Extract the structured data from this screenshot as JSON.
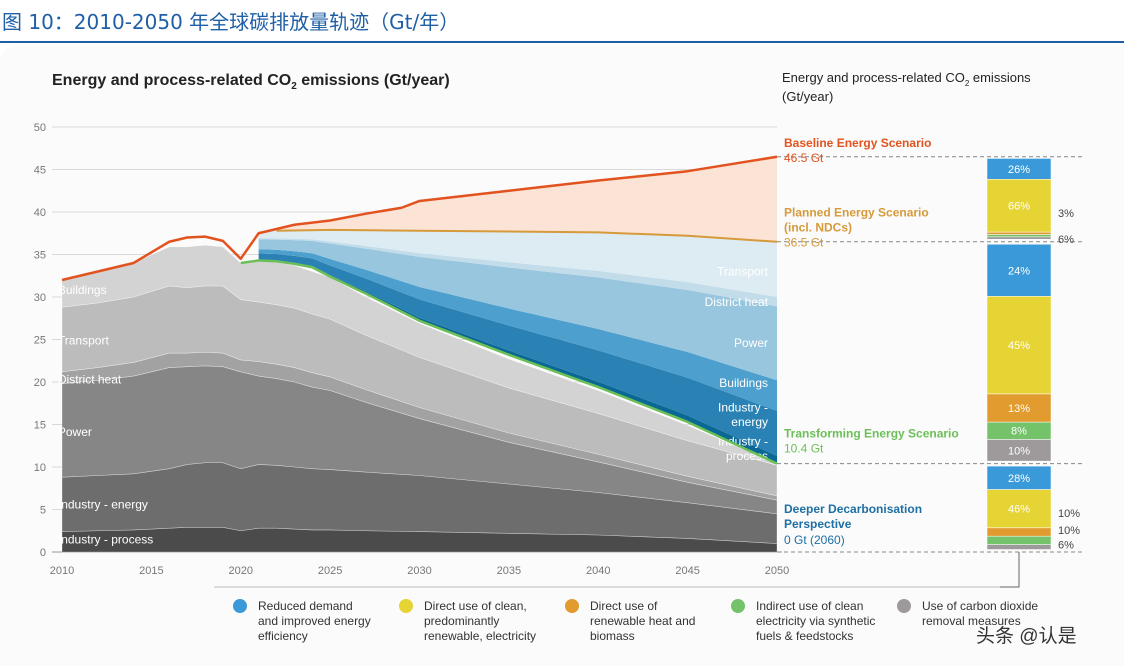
{
  "figure_title": "图 10：2010-2050 年全球碳排放量轨迹（Gt/年）",
  "watermark": "头条 @认是",
  "chart_data": {
    "type": "area",
    "title_main": "Energy and process-related CO",
    "title_sub": "2",
    "title_tail": " emissions (Gt/year)",
    "right_title_line1_main": "Energy and process-related CO",
    "right_title_line1_sub": "2",
    "right_title_line1_tail": " emissions",
    "right_title_line2": "(Gt/year)",
    "xlim": [
      2010,
      2050
    ],
    "ylim": [
      0,
      50
    ],
    "xticks": [
      2010,
      2015,
      2020,
      2025,
      2030,
      2035,
      2040,
      2045,
      2050
    ],
    "yticks": [
      0,
      5,
      10,
      15,
      20,
      25,
      30,
      35,
      40,
      45,
      50
    ],
    "grid": true,
    "x": [
      2010,
      2012,
      2014,
      2016,
      2017,
      2018,
      2019,
      2020,
      2021,
      2022,
      2023,
      2024,
      2025,
      2027,
      2030,
      2035,
      2040,
      2045,
      2050
    ],
    "sectors": [
      {
        "name": "Industry - process",
        "color": "#4b4b4b",
        "values": [
          2.4,
          2.5,
          2.6,
          2.8,
          2.9,
          2.9,
          2.9,
          2.5,
          2.8,
          2.8,
          2.7,
          2.6,
          2.6,
          2.5,
          2.4,
          2.2,
          2.0,
          1.6,
          1.0
        ]
      },
      {
        "name": "Industry - energy",
        "color": "#6d6d6d",
        "values": [
          6.4,
          6.5,
          6.6,
          7.0,
          7.4,
          7.6,
          7.6,
          7.3,
          7.5,
          7.4,
          7.3,
          7.2,
          7.1,
          6.9,
          6.6,
          5.8,
          5.0,
          4.2,
          3.5
        ]
      },
      {
        "name": "Power",
        "color": "#868686",
        "values": [
          11.0,
          11.2,
          11.5,
          11.9,
          11.5,
          11.4,
          11.3,
          11.4,
          10.4,
          10.2,
          10.0,
          9.6,
          9.3,
          8.2,
          6.7,
          4.9,
          3.6,
          2.4,
          1.6
        ]
      },
      {
        "name": "District heat",
        "color": "#a2a2a2",
        "values": [
          1.4,
          1.5,
          1.6,
          1.7,
          1.6,
          1.6,
          1.6,
          1.4,
          1.7,
          1.7,
          1.7,
          1.7,
          1.6,
          1.5,
          1.3,
          1.1,
          0.9,
          0.7,
          0.5
        ]
      },
      {
        "name": "Transport",
        "color": "#bcbcbc",
        "values": [
          7.6,
          7.6,
          7.7,
          7.9,
          7.7,
          7.8,
          7.9,
          7.1,
          7.0,
          7.0,
          7.0,
          6.9,
          6.8,
          6.4,
          5.9,
          5.3,
          4.8,
          4.2,
          3.6
        ]
      },
      {
        "name": "Buildings",
        "color": "#d3d3d3",
        "values": [
          3.2,
          3.7,
          4.0,
          4.6,
          4.8,
          4.8,
          4.6,
          4.3,
          4.9,
          5.0,
          5.0,
          5.0,
          4.9,
          4.5,
          4.0,
          3.4,
          2.7,
          1.8,
          0.2
        ]
      }
    ],
    "sector_labels": [
      {
        "text": "Industry - process",
        "x": 2011,
        "y": 1.5
      },
      {
        "text": "Industry - energy",
        "x": 2011,
        "y": 5.6
      },
      {
        "text": "Power",
        "x": 2011,
        "y": 14.1
      },
      {
        "text": "District heat",
        "x": 2011,
        "y": 20.3
      },
      {
        "text": "Transport",
        "x": 2011,
        "y": 24.9
      },
      {
        "text": "Buildings",
        "x": 2011,
        "y": 30.8
      }
    ],
    "reduction_bands": [
      {
        "name": "Industry - process",
        "color": "#0a6894",
        "values2050": [
          10.4,
          11.3
        ]
      },
      {
        "name": "Industry - energy",
        "color": "#2a82b4",
        "values2050": [
          11.3,
          16.6
        ]
      },
      {
        "name": "Buildings",
        "color": "#4d9fcd",
        "values2050": [
          16.6,
          20.2
        ]
      },
      {
        "name": "Power",
        "color": "#98c6de",
        "values2050": [
          20.2,
          28.9
        ]
      },
      {
        "name": "District heat",
        "color": "#c2dcea",
        "values2050": [
          28.9,
          30.0
        ]
      },
      {
        "name": "Transport",
        "color": "#ddebf3",
        "values2050": [
          30.0,
          36.5
        ]
      }
    ],
    "band_labels": [
      {
        "text": "Transport",
        "y": 33.0
      },
      {
        "text": "District heat",
        "y": 29.4
      },
      {
        "text": "Power",
        "y": 24.6
      },
      {
        "text": "Buildings",
        "y": 19.9
      },
      {
        "text": "Industry -",
        "y": 17.0
      },
      {
        "text": "energy",
        "y": 15.3
      },
      {
        "text": "Industry -",
        "y": 13.0
      },
      {
        "text": "process",
        "y": 11.3
      }
    ],
    "scenarios": [
      {
        "name": "Baseline Energy Scenario",
        "value_label": "46.5 Gt",
        "color": "#e2531f",
        "x": [
          2010,
          2012,
          2014,
          2016,
          2017,
          2018,
          2019,
          2020,
          2021,
          2022,
          2023,
          2025,
          2027,
          2029,
          2030,
          2035,
          2040,
          2045,
          2050
        ],
        "y": [
          32.0,
          33.0,
          34.0,
          36.5,
          37.0,
          37.1,
          36.6,
          34.5,
          37.5,
          38.0,
          38.5,
          39.0,
          39.8,
          40.5,
          41.3,
          42.5,
          43.7,
          44.8,
          46.5
        ]
      },
      {
        "name": "Planned Energy Scenario",
        "name_line2": "(incl. NDCs)",
        "value_label": "36.5 Gt",
        "color": "#d69a3a",
        "x": [
          2022,
          2025,
          2030,
          2035,
          2040,
          2045,
          2050
        ],
        "y": [
          37.8,
          37.9,
          37.8,
          37.7,
          37.6,
          37.2,
          36.5
        ]
      },
      {
        "name": "Transforming Energy Scenario",
        "value_label": "10.4 Gt",
        "color": "#6cbf58",
        "x": [
          2020,
          2021,
          2022,
          2023,
          2024,
          2025,
          2027,
          2030,
          2035,
          2040,
          2045,
          2050
        ],
        "y": [
          34.0,
          34.3,
          34.2,
          33.9,
          33.5,
          32.4,
          30.4,
          27.2,
          23.2,
          19.4,
          15.3,
          10.4
        ]
      },
      {
        "name": "Deeper Decarbonisation",
        "name_line2": "Perspective",
        "value_label": "0 Gt (2060)",
        "color": "#1d6fa5"
      }
    ],
    "dashed_levels": [
      46.5,
      36.5,
      10.4,
      0
    ],
    "breakdown_bars": [
      {
        "from": 36.5,
        "to": 46.5,
        "segments": [
          {
            "label": "",
            "pct": 3,
            "color": "#9e9a9c"
          },
          {
            "label": "",
            "pct": 3,
            "color": "#74c36a"
          },
          {
            "label": "",
            "pct": 3,
            "color": "#e29b2e"
          },
          {
            "label": "66%",
            "pct": 66,
            "color": "#e6d435"
          },
          {
            "label": "26%",
            "pct": 26,
            "color": "#3a9ad9"
          }
        ]
      },
      {
        "from": 10.4,
        "to": 36.5,
        "segments": [
          {
            "label": "10%",
            "pct": 10,
            "color": "#9e9a9c"
          },
          {
            "label": "8%",
            "pct": 8,
            "color": "#74c36a"
          },
          {
            "label": "13%",
            "pct": 13,
            "color": "#e29b2e"
          },
          {
            "label": "45%",
            "pct": 45,
            "color": "#e6d435"
          },
          {
            "label": "24%",
            "pct": 24,
            "color": "#3a9ad9"
          }
        ]
      },
      {
        "from": 0,
        "to": 10.4,
        "segments": [
          {
            "label": "",
            "pct": 6,
            "color": "#9e9a9c"
          },
          {
            "label": "",
            "pct": 10,
            "color": "#74c36a"
          },
          {
            "label": "",
            "pct": 10,
            "color": "#e29b2e"
          },
          {
            "label": "46%",
            "pct": 46,
            "color": "#e6d435"
          },
          {
            "label": "28%",
            "pct": 28,
            "color": "#3a9ad9"
          }
        ]
      }
    ],
    "side_labels": [
      {
        "text": "3%",
        "y": 39.9
      },
      {
        "text": "6%",
        "y": 36.8
      },
      {
        "text": "10%",
        "y": 4.6
      },
      {
        "text": "10%",
        "y": 2.6
      },
      {
        "text": "6%",
        "y": 0.9
      }
    ],
    "legend": [
      {
        "color": "#3a9ad9",
        "lines": [
          "Reduced demand",
          "and improved energy",
          "efficiency"
        ]
      },
      {
        "color": "#e6d435",
        "lines": [
          "Direct use of clean,",
          "predominantly",
          "renewable, electricity"
        ]
      },
      {
        "color": "#e29b2e",
        "lines": [
          "Direct use of",
          "renewable heat and",
          "biomass"
        ]
      },
      {
        "color": "#74c36a",
        "lines": [
          "Indirect use of clean",
          "electricity via synthetic",
          "fuels & feedstocks"
        ]
      },
      {
        "color": "#9e9a9c",
        "lines": [
          "Use of carbon dioxide",
          "removal measures"
        ]
      }
    ]
  }
}
